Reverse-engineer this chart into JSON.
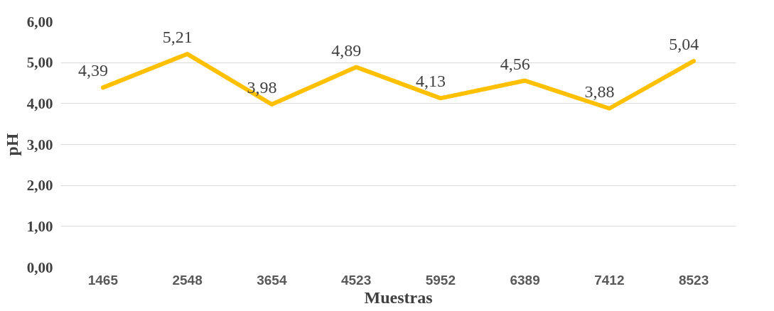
{
  "chart_data": {
    "type": "line",
    "xlabel": "Muestras",
    "ylabel": "pH",
    "categories": [
      "1465",
      "2548",
      "3654",
      "4523",
      "5952",
      "6389",
      "7412",
      "8523"
    ],
    "series": [
      {
        "color": "#ffc000",
        "values": [
          4.39,
          5.21,
          3.98,
          4.89,
          4.13,
          4.56,
          3.88,
          5.04
        ],
        "value_labels": [
          "4,39",
          "5,21",
          "3,98",
          "4,89",
          "4,13",
          "4,56",
          "3,88",
          "5,04"
        ]
      }
    ],
    "ylim": [
      0,
      6
    ],
    "yticks": [
      {
        "value": 0,
        "label": "0,00"
      },
      {
        "value": 1,
        "label": "1,00"
      },
      {
        "value": 2,
        "label": "2,00"
      },
      {
        "value": 3,
        "label": "3,00"
      },
      {
        "value": 4,
        "label": "4,00"
      },
      {
        "value": 5,
        "label": "5,00"
      },
      {
        "value": 6,
        "label": "6,00"
      }
    ],
    "grid": "y",
    "marker": "none",
    "line_style": "solid"
  }
}
